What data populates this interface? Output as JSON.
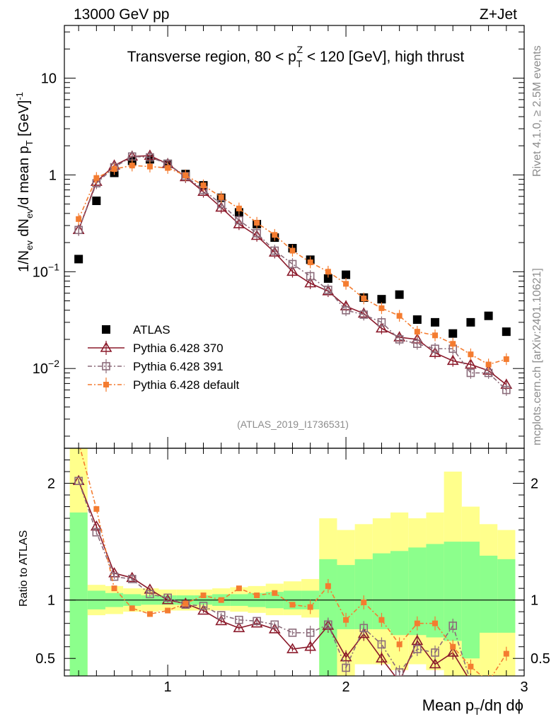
{
  "header": {
    "left": "13000 GeV pp",
    "right": "Z+Jet"
  },
  "side": {
    "top": "Rivet 4.1.0, ≥ 2.5M events",
    "bottom": "mcplots.cern.ch [arXiv:2401.10621]"
  },
  "chart_data": {
    "type": "scatter",
    "title_parts": {
      "a": "Transverse region, 80 < p",
      "sub": "T",
      "sup": "Z",
      "b": " < 120 [GeV], high thrust"
    },
    "analysis_id": "(ATLAS_2019_I1736531)",
    "ylabel_main": {
      "p1": "1/N",
      "s1": "ev",
      "p2": " dN",
      "s2": "ev",
      "p3": "/d mean p",
      "s3": "T",
      "p4": " [GeV]",
      "sup": "-1"
    },
    "ylabel_ratio": "Ratio to ATLAS",
    "xlabel": {
      "p1": "Mean p",
      "s1": "T",
      "p2": "/dη dϕ"
    },
    "xlim": [
      0.42,
      3.0
    ],
    "main_ylim": [
      0.0015,
      35
    ],
    "ratio_ylim": [
      0.35,
      2.3
    ],
    "x_ticks": [
      {
        "v": 1,
        "label": "1"
      },
      {
        "v": 2,
        "label": "2"
      },
      {
        "v": 3,
        "label": "3"
      }
    ],
    "main_y_ticks": [
      {
        "v": 10,
        "base": "10",
        "exp": ""
      },
      {
        "v": 1,
        "base": "1",
        "exp": ""
      },
      {
        "v": 0.1,
        "base": "10",
        "exp": "−1"
      },
      {
        "v": 0.01,
        "base": "10",
        "exp": "−2"
      }
    ],
    "ratio_y_ticks": [
      {
        "v": 2,
        "label": "2"
      },
      {
        "v": 1,
        "label": "1"
      },
      {
        "v": 0.5,
        "label": "0.5"
      }
    ],
    "x": [
      0.5,
      0.6,
      0.7,
      0.8,
      0.9,
      1.0,
      1.1,
      1.2,
      1.3,
      1.4,
      1.5,
      1.6,
      1.7,
      1.8,
      1.9,
      2.0,
      2.1,
      2.2,
      2.3,
      2.4,
      2.5,
      2.6,
      2.7,
      2.8,
      2.9
    ],
    "bin_edges": [
      0.45,
      0.55,
      0.65,
      0.75,
      0.85,
      0.95,
      1.05,
      1.15,
      1.25,
      1.35,
      1.45,
      1.55,
      1.65,
      1.75,
      1.85,
      1.95,
      2.05,
      2.15,
      2.25,
      2.35,
      2.45,
      2.55,
      2.65,
      2.75,
      2.85,
      2.95
    ],
    "band_stat": [
      [
        0.35,
        1.75
      ],
      [
        0.92,
        1.08
      ],
      [
        0.94,
        1.06
      ],
      [
        0.95,
        1.05
      ],
      [
        0.96,
        1.04
      ],
      [
        0.96,
        1.04
      ],
      [
        0.96,
        1.04
      ],
      [
        0.96,
        1.04
      ],
      [
        0.95,
        1.05
      ],
      [
        0.95,
        1.05
      ],
      [
        0.94,
        1.06
      ],
      [
        0.93,
        1.07
      ],
      [
        0.92,
        1.08
      ],
      [
        0.92,
        1.08
      ],
      [
        0.35,
        1.35
      ],
      [
        0.75,
        1.3
      ],
      [
        0.75,
        1.35
      ],
      [
        0.75,
        1.4
      ],
      [
        0.7,
        1.42
      ],
      [
        0.7,
        1.45
      ],
      [
        0.68,
        1.48
      ],
      [
        0.65,
        1.5
      ],
      [
        0.5,
        1.5
      ],
      [
        0.72,
        1.38
      ],
      [
        0.72,
        1.35
      ]
    ],
    "band_syst": [
      [
        0.35,
        2.35
      ],
      [
        0.87,
        1.13
      ],
      [
        0.88,
        1.12
      ],
      [
        0.9,
        1.1
      ],
      [
        0.9,
        1.1
      ],
      [
        0.91,
        1.09
      ],
      [
        0.91,
        1.09
      ],
      [
        0.91,
        1.09
      ],
      [
        0.91,
        1.1
      ],
      [
        0.9,
        1.11
      ],
      [
        0.89,
        1.12
      ],
      [
        0.87,
        1.14
      ],
      [
        0.87,
        1.16
      ],
      [
        0.85,
        1.18
      ],
      [
        0.35,
        1.7
      ],
      [
        0.35,
        1.6
      ],
      [
        0.45,
        1.65
      ],
      [
        0.45,
        1.7
      ],
      [
        0.4,
        1.75
      ],
      [
        0.45,
        1.7
      ],
      [
        0.4,
        1.75
      ],
      [
        0.35,
        2.1
      ],
      [
        0.35,
        1.8
      ],
      [
        0.35,
        1.65
      ],
      [
        0.35,
        1.6
      ]
    ],
    "series": [
      {
        "name": "ATLAS",
        "color": "#000000",
        "marker": "square-filled",
        "values": [
          0.135,
          0.54,
          1.05,
          1.4,
          1.45,
          1.3,
          1.02,
          0.78,
          0.58,
          0.41,
          0.31,
          0.225,
          0.175,
          0.133,
          0.085,
          0.093,
          0.054,
          0.052,
          0.058,
          0.032,
          0.03,
          0.023,
          0.03,
          0.035,
          0.024
        ],
        "ratio": []
      },
      {
        "name": "Pythia 6.428 370",
        "color": "#8b1a2b",
        "marker": "triangle-open",
        "dash": "",
        "values": [
          0.27,
          0.85,
          1.25,
          1.55,
          1.58,
          1.3,
          0.95,
          0.67,
          0.46,
          0.31,
          0.235,
          0.158,
          0.1,
          0.076,
          0.063,
          0.044,
          0.037,
          0.026,
          0.021,
          0.02,
          0.0145,
          0.012,
          0.011,
          0.0095,
          0.0068
        ],
        "ratio": [
          2.02,
          1.63,
          1.23,
          1.19,
          1.09,
          1.0,
          0.97,
          0.91,
          0.82,
          0.76,
          0.8,
          0.75,
          0.58,
          0.6,
          0.78,
          0.51,
          0.71,
          0.5,
          0.3,
          0.65,
          0.45,
          0.55,
          0.3,
          null,
          null
        ]
      },
      {
        "name": "Pythia 6.428 391",
        "color": "#8b6b7a",
        "marker": "square-open",
        "dash": "6,3,2,3",
        "values": [
          0.27,
          0.82,
          1.2,
          1.55,
          1.52,
          1.3,
          0.97,
          0.7,
          0.5,
          0.34,
          0.25,
          0.165,
          0.12,
          0.09,
          0.065,
          0.04,
          0.036,
          0.03,
          0.02,
          0.018,
          0.016,
          0.016,
          0.009,
          0.009,
          0.006
        ],
        "ratio": [
          2.02,
          1.58,
          1.2,
          1.18,
          1.05,
          1.02,
          0.96,
          0.95,
          0.87,
          0.83,
          0.82,
          0.79,
          0.72,
          0.72,
          0.79,
          0.42,
          0.76,
          0.62,
          0.38,
          0.58,
          0.55,
          0.78,
          0.3,
          null,
          null
        ]
      },
      {
        "name": "Pythia 6.428 default",
        "color": "#f47c30",
        "marker": "square-small-filled",
        "dash": "6,3,2,3",
        "values": [
          0.35,
          0.93,
          1.15,
          1.25,
          1.22,
          1.18,
          0.99,
          0.78,
          0.59,
          0.45,
          0.32,
          0.24,
          0.165,
          0.125,
          0.1,
          0.075,
          0.053,
          0.042,
          0.035,
          0.024,
          0.022,
          0.018,
          0.014,
          0.011,
          0.0125
        ],
        "ratio": [
          2.35,
          1.78,
          1.1,
          0.93,
          0.88,
          0.91,
          0.97,
          1.04,
          1.0,
          1.1,
          1.04,
          1.06,
          0.96,
          0.94,
          1.12,
          0.83,
          0.98,
          0.83,
          0.62,
          0.8,
          0.8,
          0.6,
          0.43,
          0.3,
          0.54
        ]
      }
    ],
    "legend_position": "lower-left"
  }
}
